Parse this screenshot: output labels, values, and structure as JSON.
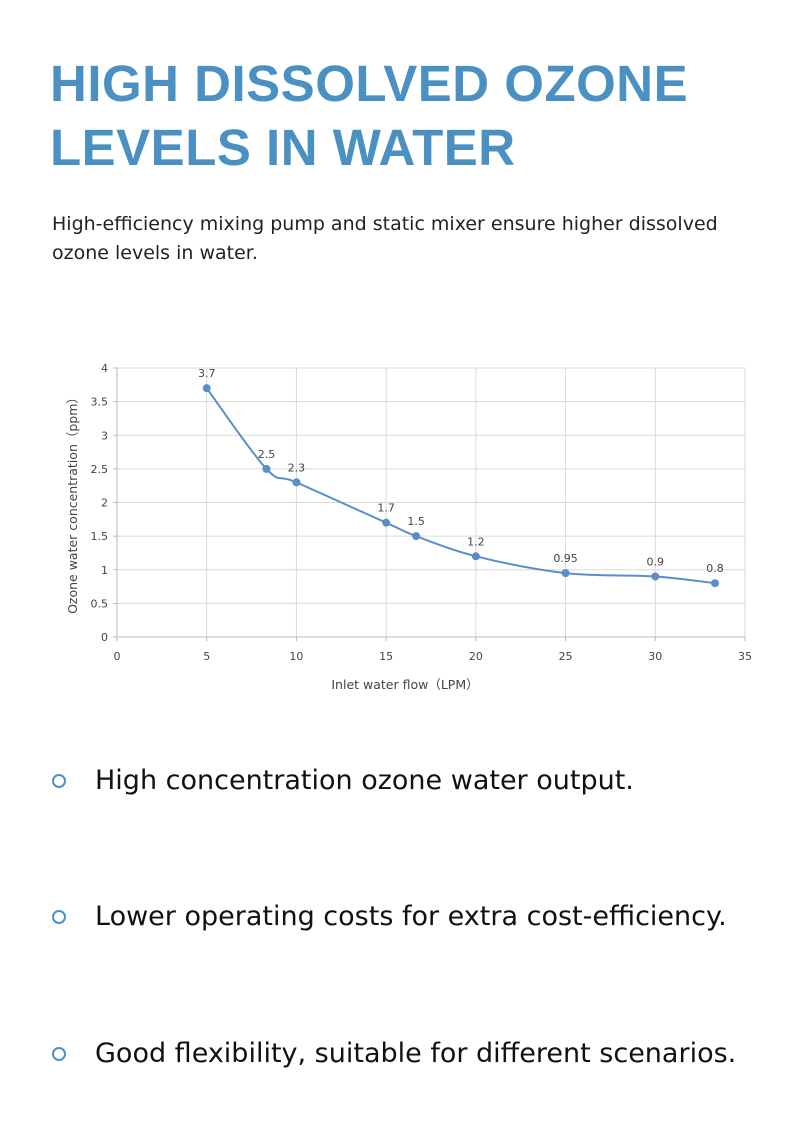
{
  "header": {
    "title_line1": "HIGH DISSOLVED OZONE",
    "title_line2": "LEVELS IN WATER",
    "subtitle": "High-efficiency mixing pump and static mixer ensure higher dissolved ozone levels in water.",
    "title_color": "#4a90c2"
  },
  "chart_data": {
    "type": "line",
    "xlabel": "Inlet water flow（LPM）",
    "ylabel": "Ozone water concentration（ppm）",
    "xlim": [
      0,
      35
    ],
    "ylim": [
      0,
      4
    ],
    "xticks": [
      0,
      5,
      10,
      15,
      20,
      25,
      30,
      35
    ],
    "yticks": [
      0,
      0.5,
      1,
      1.5,
      2,
      2.5,
      3,
      3.5,
      4
    ],
    "grid": true,
    "series_color": "#5b8ec9",
    "series": [
      {
        "x": [
          5,
          8.33,
          10,
          15,
          16.67,
          20,
          25,
          30,
          33.33
        ],
        "values": [
          3.7,
          2.5,
          2.3,
          1.7,
          1.5,
          1.2,
          0.95,
          0.9,
          0.8
        ],
        "labels": [
          "3.7",
          "2.5",
          "2.3",
          "1.7",
          "1.5",
          "1.2",
          "0.95",
          "0.9",
          "0.8"
        ]
      }
    ]
  },
  "features": {
    "items": [
      {
        "text": "High concentration ozone water output."
      },
      {
        "text": "Lower operating costs for extra cost-efficiency."
      },
      {
        "text": "Good flexibility, suitable for different scenarios."
      }
    ]
  }
}
